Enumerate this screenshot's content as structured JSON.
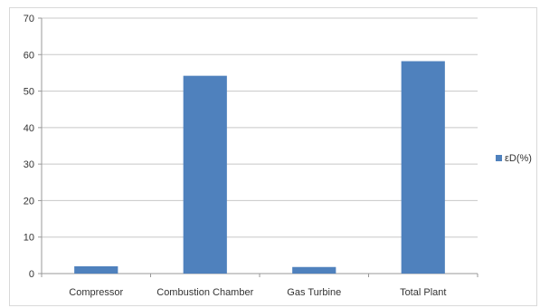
{
  "chart_data": {
    "type": "bar",
    "categories": [
      "Compressor",
      "Combustion Chamber",
      "Gas Turbine",
      "Total Plant"
    ],
    "series": [
      {
        "name": "εD(%)",
        "values": [
          2,
          54.2,
          1.8,
          58.2
        ],
        "color": "#4f81bd"
      }
    ],
    "ylim": [
      0,
      70
    ],
    "yticks": [
      0,
      10,
      20,
      30,
      40,
      50,
      60,
      70
    ],
    "grid": true,
    "legend_position": "right"
  }
}
